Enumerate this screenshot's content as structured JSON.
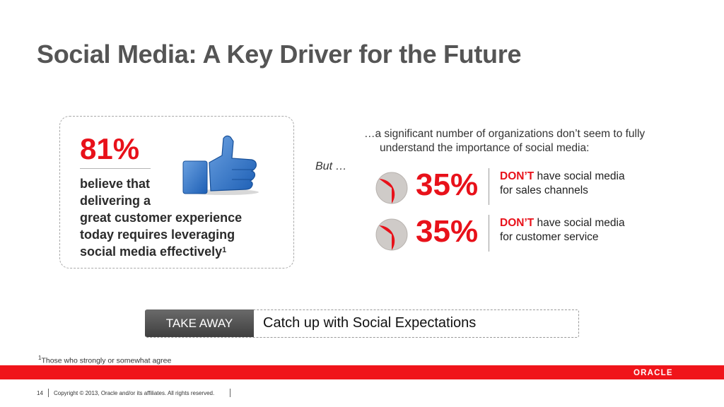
{
  "slide": {
    "title": "Social Media: A Key Driver for the Future"
  },
  "left_card": {
    "stat": "81%",
    "text_line1": "believe that",
    "text_line2": "delivering a",
    "text_line3": "great customer experience",
    "text_line4": "today requires leveraging",
    "text_line5": "social media effectively",
    "footnote_marker": "1",
    "icon": "thumbs-up-icon"
  },
  "right_column": {
    "intro_line1": "…a significant number of organizations don’t seem to fully",
    "intro_line2": "understand the importance of social media:",
    "but_label": "But …",
    "stats": [
      {
        "percent": "35%",
        "fraction": 0.35,
        "negation": "DON’T",
        "desc_rest": " have social media",
        "desc_line2": "for sales channels"
      },
      {
        "percent": "35%",
        "fraction": 0.35,
        "negation": "DON’T",
        "desc_rest": " have social media",
        "desc_line2": "for customer service"
      }
    ]
  },
  "takeaway": {
    "tag": "TAKE AWAY",
    "text": "Catch up with Social Expectations"
  },
  "footnote": {
    "marker": "1",
    "text": "Those who strongly or somewhat agree"
  },
  "footer": {
    "logo": "ORACLE",
    "page_number": "14",
    "copyright": "Copyright © 2013, Oracle and/or its affiliates. All rights reserved."
  },
  "colors": {
    "accent_red": "#e8111a",
    "footer_bar": "#f0141a",
    "title_gray": "#555555",
    "pie_gray": "#cfcbc8"
  }
}
